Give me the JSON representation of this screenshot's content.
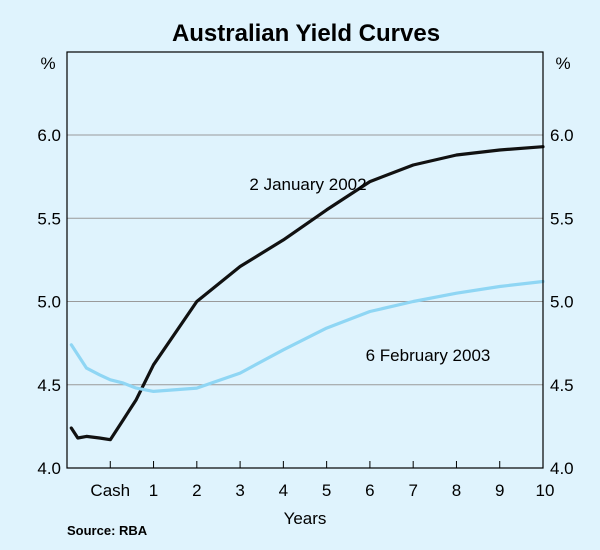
{
  "chart_data": {
    "type": "line",
    "title": "Australian Yield Curves",
    "xlabel": "Years",
    "ylabel_left": "%",
    "ylabel_right": "%",
    "ylim": [
      4.0,
      6.0
    ],
    "y_ticks": [
      "4.0",
      "4.5",
      "5.0",
      "5.5",
      "6.0"
    ],
    "x_ticks": [
      "Cash",
      "1",
      "2",
      "3",
      "4",
      "5",
      "6",
      "7",
      "8",
      "9",
      "10"
    ],
    "xlim": [
      -1.0,
      10.0
    ],
    "grid": true,
    "series": [
      {
        "name": "2 January 2002",
        "color": "#111111",
        "x": [
          -0.9,
          -0.75,
          -0.55,
          -0.25,
          0.0,
          0.3,
          0.6,
          1.0,
          2.0,
          3.0,
          4.0,
          5.0,
          6.0,
          7.0,
          8.0,
          9.0,
          10.0
        ],
        "y": [
          4.24,
          4.18,
          4.19,
          4.18,
          4.17,
          4.29,
          4.41,
          4.62,
          5.0,
          5.21,
          5.37,
          5.55,
          5.72,
          5.82,
          5.88,
          5.91,
          5.93
        ]
      },
      {
        "name": "6 February 2003",
        "color": "#8fd6f4",
        "x": [
          -0.9,
          -0.75,
          -0.55,
          -0.25,
          0.0,
          0.3,
          0.6,
          1.0,
          2.0,
          3.0,
          4.0,
          5.0,
          6.0,
          7.0,
          8.0,
          9.0,
          10.0
        ],
        "y": [
          4.74,
          4.68,
          4.6,
          4.56,
          4.53,
          4.51,
          4.48,
          4.46,
          4.48,
          4.57,
          4.71,
          4.84,
          4.94,
          5.0,
          5.05,
          5.09,
          5.12
        ]
      }
    ],
    "annotations": [
      {
        "text": "2 January 2002",
        "series": 0
      },
      {
        "text": "6 February 2003",
        "series": 1
      }
    ],
    "source": "Source: RBA"
  }
}
